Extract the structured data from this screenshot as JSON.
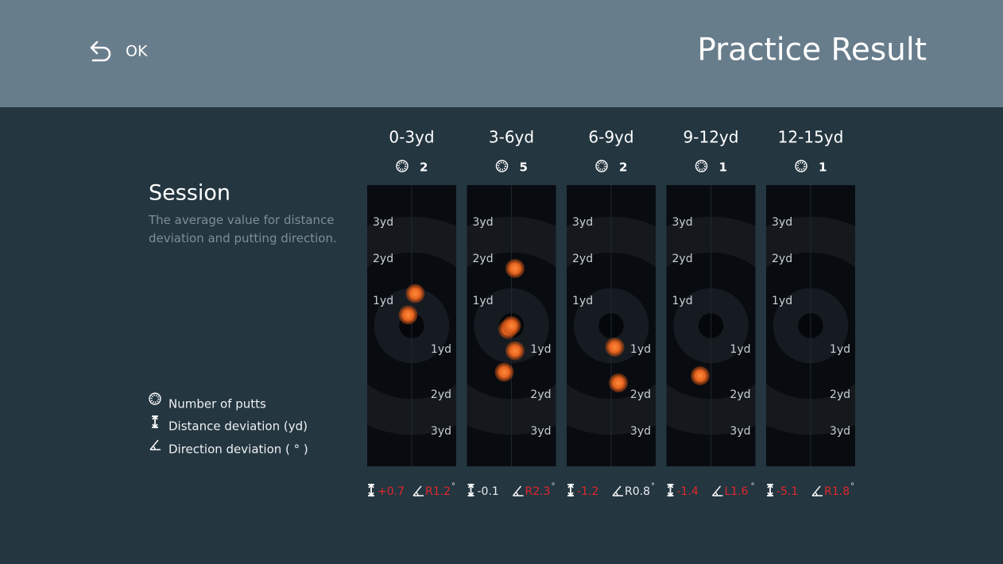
{
  "header": {
    "back_label": "OK",
    "title": "Practice Result"
  },
  "session": {
    "title": "Session",
    "description": "The average value for distance deviation and putting direction.",
    "legend": [
      "Number of putts",
      "Distance deviation (yd)",
      "Direction deviation ( ° )"
    ]
  },
  "ring_labels": [
    "1yd",
    "2yd",
    "3yd"
  ],
  "degree_symbol": "°",
  "deviation_color": "#e0262b",
  "normal_color": "#e8ecef",
  "columns": [
    {
      "range": "0-3yd",
      "putts": 2,
      "distance": "+0.7",
      "direction": "R1.2",
      "distance_off": true,
      "direction_off": true,
      "shots": [
        [
          0.1,
          0.9
        ],
        [
          -0.1,
          0.3
        ]
      ]
    },
    {
      "range": "3-6yd",
      "putts": 5,
      "distance": "-0.1",
      "direction": "R2.3",
      "distance_off": false,
      "direction_off": true,
      "shots": [
        [
          0.1,
          1.6
        ],
        [
          -0.1,
          -0.1
        ],
        [
          0.0,
          0.0
        ],
        [
          0.1,
          -0.7
        ],
        [
          -0.2,
          -1.3
        ]
      ]
    },
    {
      "range": "6-9yd",
      "putts": 2,
      "distance": "-1.2",
      "direction": "R0.8",
      "distance_off": true,
      "direction_off": false,
      "shots": [
        [
          0.1,
          -0.6
        ],
        [
          0.2,
          -1.6
        ]
      ]
    },
    {
      "range": "9-12yd",
      "putts": 1,
      "distance": "-1.4",
      "direction": "L1.6",
      "distance_off": true,
      "direction_off": true,
      "shots": [
        [
          -0.3,
          -1.4
        ]
      ]
    },
    {
      "range": "12-15yd",
      "putts": 1,
      "distance": "-5.1",
      "direction": "R1.8",
      "distance_off": true,
      "direction_off": true
    }
  ]
}
